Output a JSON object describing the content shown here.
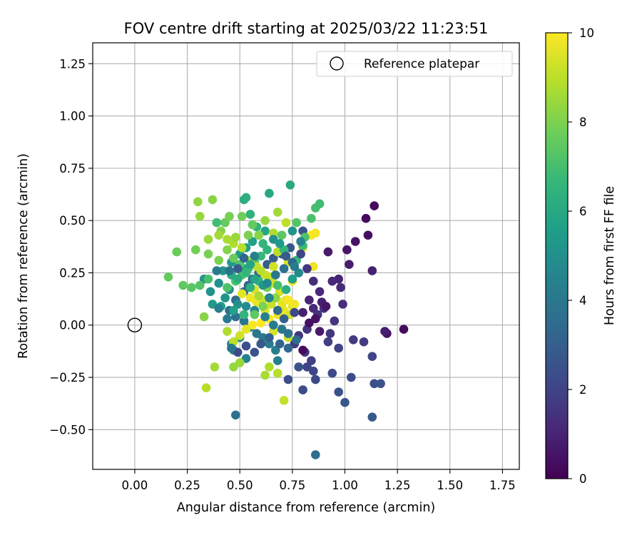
{
  "chart_data": {
    "type": "scatter",
    "title": "FOV centre drift starting at 2025/03/22 11:23:51",
    "xlabel": "Angular distance from reference (arcmin)",
    "ylabel": "Rotation from reference (arcmin)",
    "xlim": [
      -0.2,
      1.83
    ],
    "ylim": [
      -0.69,
      1.35
    ],
    "xticks": [
      "0.00",
      "0.25",
      "0.50",
      "0.75",
      "1.00",
      "1.25",
      "1.50",
      "1.75"
    ],
    "yticks": [
      "−0.50",
      "−0.25",
      "0.00",
      "0.25",
      "0.50",
      "0.75",
      "1.00",
      "1.25"
    ],
    "grid": true,
    "legend": {
      "placement": "top-right",
      "entries": [
        "Reference platepar"
      ]
    },
    "colorbar": {
      "label": "Hours from first FF file",
      "range": [
        0,
        10
      ],
      "ticks": [
        "0",
        "2",
        "4",
        "6",
        "8",
        "10"
      ],
      "colormap": [
        "#440154",
        "#482878",
        "#3e4a89",
        "#31688e",
        "#26828e",
        "#1f9e89",
        "#35b779",
        "#6ece58",
        "#b5de2b",
        "#fde725"
      ]
    },
    "reference_point": {
      "x": 0.0,
      "y": 0.0
    },
    "points": [
      [
        1.14,
        0.57,
        0.2
      ],
      [
        1.1,
        0.51,
        0.3
      ],
      [
        1.11,
        0.43,
        0.4
      ],
      [
        1.05,
        0.4,
        0.5
      ],
      [
        1.01,
        0.36,
        0.6
      ],
      [
        0.92,
        0.35,
        0.7
      ],
      [
        1.02,
        0.29,
        0.8
      ],
      [
        1.13,
        0.26,
        0.9
      ],
      [
        0.97,
        0.22,
        1.0
      ],
      [
        0.94,
        0.21,
        1.1
      ],
      [
        0.98,
        0.18,
        1.2
      ],
      [
        0.99,
        0.1,
        1.3
      ],
      [
        0.9,
        0.08,
        1.4
      ],
      [
        0.95,
        0.02,
        1.5
      ],
      [
        0.93,
        -0.04,
        1.6
      ],
      [
        1.04,
        -0.07,
        1.7
      ],
      [
        1.09,
        -0.08,
        1.8
      ],
      [
        0.92,
        -0.08,
        1.9
      ],
      [
        0.97,
        -0.11,
        2.0
      ],
      [
        1.13,
        -0.15,
        2.1
      ],
      [
        0.94,
        -0.23,
        2.2
      ],
      [
        1.03,
        -0.25,
        2.3
      ],
      [
        1.14,
        -0.28,
        2.4
      ],
      [
        1.17,
        -0.28,
        2.5
      ],
      [
        0.97,
        -0.32,
        2.6
      ],
      [
        1.0,
        -0.37,
        2.7
      ],
      [
        1.13,
        -0.44,
        2.8
      ],
      [
        1.2,
        -0.04,
        0.5
      ],
      [
        1.28,
        -0.02,
        0.3
      ],
      [
        1.19,
        -0.03,
        0.8
      ],
      [
        0.86,
        -0.62,
        3.6
      ],
      [
        0.48,
        -0.43,
        3.7
      ],
      [
        0.83,
        0.12,
        1.0
      ],
      [
        0.85,
        0.08,
        1.2
      ],
      [
        0.8,
        0.06,
        0.9
      ],
      [
        0.87,
        0.05,
        1.4
      ],
      [
        0.82,
        -0.02,
        1.5
      ],
      [
        0.78,
        -0.05,
        1.6
      ],
      [
        0.76,
        -0.09,
        1.7
      ],
      [
        0.81,
        -0.13,
        1.8
      ],
      [
        0.84,
        -0.17,
        1.9
      ],
      [
        0.82,
        -0.2,
        2.0
      ],
      [
        0.85,
        -0.22,
        2.1
      ],
      [
        0.86,
        -0.26,
        2.2
      ],
      [
        0.8,
        -0.31,
        2.3
      ],
      [
        0.73,
        -0.26,
        2.4
      ],
      [
        0.78,
        -0.2,
        2.5
      ],
      [
        0.8,
        0.45,
        2.6
      ],
      [
        0.74,
        0.37,
        2.7
      ],
      [
        0.7,
        0.34,
        2.8
      ],
      [
        0.66,
        0.32,
        2.9
      ],
      [
        0.63,
        0.29,
        3.0
      ],
      [
        0.59,
        0.25,
        3.1
      ],
      [
        0.56,
        0.22,
        3.2
      ],
      [
        0.54,
        0.19,
        3.3
      ],
      [
        0.52,
        0.16,
        3.4
      ],
      [
        0.48,
        0.12,
        3.5
      ],
      [
        0.45,
        0.07,
        3.6
      ],
      [
        0.48,
        0.04,
        3.7
      ],
      [
        0.52,
        0.02,
        3.8
      ],
      [
        0.55,
        -0.01,
        3.9
      ],
      [
        0.58,
        -0.04,
        4.0
      ],
      [
        0.61,
        -0.06,
        4.1
      ],
      [
        0.64,
        -0.09,
        4.2
      ],
      [
        0.67,
        -0.12,
        4.3
      ],
      [
        0.68,
        -0.17,
        4.4
      ],
      [
        0.53,
        -0.16,
        4.5
      ],
      [
        0.47,
        -0.12,
        4.6
      ],
      [
        0.46,
        -0.09,
        4.7
      ],
      [
        0.5,
        -0.06,
        4.8
      ],
      [
        0.45,
        0.17,
        4.9
      ],
      [
        0.4,
        0.2,
        5.0
      ],
      [
        0.36,
        0.16,
        5.1
      ],
      [
        0.33,
        0.22,
        5.2
      ],
      [
        0.42,
        0.26,
        5.3
      ],
      [
        0.46,
        0.3,
        5.4
      ],
      [
        0.5,
        0.34,
        5.5
      ],
      [
        0.53,
        0.37,
        5.6
      ],
      [
        0.56,
        0.4,
        5.7
      ],
      [
        0.59,
        0.43,
        5.8
      ],
      [
        0.62,
        0.45,
        5.9
      ],
      [
        0.64,
        0.63,
        6.0
      ],
      [
        0.74,
        0.67,
        6.1
      ],
      [
        0.52,
        0.6,
        6.2
      ],
      [
        0.53,
        0.61,
        6.3
      ],
      [
        0.55,
        0.53,
        6.4
      ],
      [
        0.58,
        0.47,
        6.5
      ],
      [
        0.61,
        0.39,
        6.6
      ],
      [
        0.6,
        0.33,
        6.7
      ],
      [
        0.57,
        0.3,
        6.8
      ],
      [
        0.54,
        0.27,
        6.9
      ],
      [
        0.51,
        0.24,
        7.0
      ],
      [
        0.48,
        0.21,
        7.1
      ],
      [
        0.44,
        0.18,
        7.2
      ],
      [
        0.31,
        0.19,
        7.3
      ],
      [
        0.27,
        0.18,
        7.4
      ],
      [
        0.23,
        0.19,
        7.5
      ],
      [
        0.16,
        0.23,
        7.6
      ],
      [
        0.2,
        0.35,
        7.7
      ],
      [
        0.29,
        0.36,
        7.8
      ],
      [
        0.35,
        0.34,
        7.9
      ],
      [
        0.4,
        0.31,
        8.0
      ],
      [
        0.41,
        0.45,
        8.1
      ],
      [
        0.37,
        0.6,
        8.2
      ],
      [
        0.3,
        0.59,
        8.3
      ],
      [
        0.31,
        0.52,
        8.4
      ],
      [
        0.35,
        0.41,
        8.5
      ],
      [
        0.4,
        0.43,
        8.6
      ],
      [
        0.44,
        0.41,
        8.7
      ],
      [
        0.47,
        0.39,
        8.8
      ],
      [
        0.51,
        0.37,
        8.9
      ],
      [
        0.55,
        0.31,
        9.0
      ],
      [
        0.58,
        0.28,
        9.1
      ],
      [
        0.62,
        0.24,
        9.2
      ],
      [
        0.66,
        0.2,
        9.3
      ],
      [
        0.69,
        0.16,
        9.4
      ],
      [
        0.72,
        0.12,
        9.5
      ],
      [
        0.75,
        0.09,
        9.6
      ],
      [
        0.71,
        0.07,
        9.7
      ],
      [
        0.68,
        0.05,
        9.8
      ],
      [
        0.64,
        0.03,
        9.9
      ],
      [
        0.6,
        0.01,
        10.0
      ],
      [
        0.56,
        0.0,
        9.9
      ],
      [
        0.53,
        -0.02,
        9.6
      ],
      [
        0.5,
        -0.05,
        9.3
      ],
      [
        0.47,
        -0.08,
        9.0
      ],
      [
        0.44,
        -0.03,
        8.8
      ],
      [
        0.38,
        -0.2,
        8.6
      ],
      [
        0.34,
        -0.3,
        8.9
      ],
      [
        0.33,
        0.04,
        8.2
      ],
      [
        0.47,
        -0.2,
        8.4
      ],
      [
        0.5,
        -0.18,
        8.5
      ],
      [
        0.62,
        -0.24,
        8.7
      ],
      [
        0.64,
        -0.2,
        8.8
      ],
      [
        0.68,
        -0.23,
        8.9
      ],
      [
        0.71,
        -0.36,
        9.1
      ],
      [
        0.73,
        -0.06,
        9.2
      ],
      [
        0.66,
        -0.03,
        9.4
      ],
      [
        0.62,
        0.07,
        9.5
      ],
      [
        0.58,
        0.11,
        9.7
      ],
      [
        0.55,
        0.13,
        9.8
      ],
      [
        0.51,
        0.15,
        9.6
      ],
      [
        0.57,
        0.17,
        9.5
      ],
      [
        0.61,
        0.12,
        9.3
      ],
      [
        0.65,
        0.1,
        9.2
      ],
      [
        0.7,
        0.11,
        9.7
      ],
      [
        0.73,
        0.12,
        9.9
      ],
      [
        0.76,
        0.1,
        9.8
      ],
      [
        0.74,
        0.05,
        9.4
      ],
      [
        0.7,
        0.09,
        9.6
      ],
      [
        0.84,
        0.43,
        10.0
      ],
      [
        0.86,
        0.44,
        9.9
      ],
      [
        0.85,
        0.28,
        9.8
      ],
      [
        0.75,
        0.21,
        9.7
      ],
      [
        0.8,
        0.37,
        9.6
      ],
      [
        0.73,
        0.3,
        9.4
      ],
      [
        0.66,
        0.28,
        9.3
      ],
      [
        0.64,
        0.23,
        9.1
      ],
      [
        0.6,
        0.26,
        9.0
      ],
      [
        0.68,
        0.35,
        8.9
      ],
      [
        0.72,
        0.49,
        9.0
      ],
      [
        0.66,
        0.44,
        8.8
      ],
      [
        0.68,
        0.54,
        8.6
      ],
      [
        0.62,
        0.5,
        8.4
      ],
      [
        0.59,
        0.43,
        8.2
      ],
      [
        0.54,
        0.43,
        8.0
      ],
      [
        0.51,
        0.52,
        7.8
      ],
      [
        0.56,
        0.48,
        7.6
      ],
      [
        0.7,
        0.43,
        7.4
      ],
      [
        0.77,
        0.49,
        7.3
      ],
      [
        0.81,
        0.42,
        7.2
      ],
      [
        0.84,
        0.51,
        7.1
      ],
      [
        0.86,
        0.56,
        7.0
      ],
      [
        0.88,
        0.58,
        6.9
      ],
      [
        0.8,
        0.38,
        6.8
      ],
      [
        0.77,
        0.31,
        6.7
      ],
      [
        0.71,
        0.36,
        6.6
      ],
      [
        0.63,
        0.36,
        6.5
      ],
      [
        0.59,
        0.21,
        6.4
      ],
      [
        0.55,
        0.18,
        6.3
      ],
      [
        0.49,
        0.22,
        6.2
      ],
      [
        0.46,
        0.24,
        6.1
      ],
      [
        0.52,
        0.27,
        6.0
      ],
      [
        0.55,
        0.29,
        5.8
      ],
      [
        0.41,
        0.09,
        5.6
      ],
      [
        0.37,
        0.1,
        5.4
      ],
      [
        0.43,
        0.13,
        5.2
      ],
      [
        0.49,
        0.1,
        5.0
      ],
      [
        0.53,
        0.09,
        4.8
      ],
      [
        0.57,
        0.07,
        4.6
      ],
      [
        0.62,
        0.04,
        4.4
      ],
      [
        0.66,
        0.0,
        4.2
      ],
      [
        0.7,
        -0.02,
        4.0
      ],
      [
        0.73,
        -0.04,
        3.8
      ],
      [
        0.77,
        -0.07,
        3.6
      ],
      [
        0.73,
        -0.11,
        3.4
      ],
      [
        0.69,
        -0.09,
        3.2
      ],
      [
        0.64,
        -0.06,
        3.0
      ],
      [
        0.6,
        -0.09,
        2.8
      ],
      [
        0.57,
        -0.13,
        2.6
      ],
      [
        0.53,
        -0.1,
        2.4
      ],
      [
        0.49,
        -0.13,
        2.3
      ],
      [
        0.46,
        -0.11,
        3.9
      ],
      [
        0.44,
        0.03,
        4.1
      ],
      [
        0.4,
        0.08,
        4.3
      ],
      [
        0.47,
        0.07,
        5.7
      ],
      [
        0.52,
        0.05,
        6.5
      ],
      [
        0.57,
        0.05,
        7.5
      ],
      [
        0.61,
        0.09,
        8.0
      ],
      [
        0.67,
        0.13,
        8.3
      ],
      [
        0.59,
        0.14,
        8.7
      ],
      [
        0.63,
        0.18,
        7.9
      ],
      [
        0.68,
        0.19,
        7.0
      ],
      [
        0.72,
        0.17,
        6.2
      ],
      [
        0.75,
        0.22,
        5.5
      ],
      [
        0.78,
        0.25,
        4.7
      ],
      [
        0.75,
        0.3,
        3.3
      ],
      [
        0.72,
        0.33,
        2.9
      ],
      [
        0.79,
        0.34,
        2.1
      ],
      [
        0.82,
        0.27,
        1.6
      ],
      [
        0.85,
        0.21,
        1.3
      ],
      [
        0.88,
        0.16,
        1.1
      ],
      [
        0.89,
        0.11,
        0.9
      ],
      [
        0.91,
        0.09,
        0.6
      ],
      [
        0.86,
        0.03,
        0.5
      ],
      [
        0.83,
        0.01,
        0.4
      ],
      [
        0.88,
        -0.03,
        0.7
      ],
      [
        0.8,
        -0.12,
        0.3
      ],
      [
        0.76,
        0.06,
        2.2
      ],
      [
        0.71,
        0.03,
        3.1
      ],
      [
        0.68,
        0.07,
        3.5
      ],
      [
        0.64,
        0.13,
        4.6
      ],
      [
        0.61,
        0.19,
        5.3
      ],
      [
        0.57,
        0.22,
        5.9
      ],
      [
        0.53,
        0.25,
        6.6
      ],
      [
        0.5,
        0.29,
        7.2
      ],
      [
        0.47,
        0.32,
        7.7
      ],
      [
        0.44,
        0.36,
        8.1
      ],
      [
        0.48,
        0.42,
        8.5
      ],
      [
        0.43,
        0.49,
        7.6
      ],
      [
        0.39,
        0.49,
        6.9
      ],
      [
        0.45,
        0.52,
        7.9
      ],
      [
        0.66,
        0.41,
        5.0
      ],
      [
        0.69,
        0.39,
        5.4
      ],
      [
        0.75,
        0.45,
        5.2
      ],
      [
        0.79,
        0.4,
        4.5
      ],
      [
        0.76,
        0.28,
        4.1
      ],
      [
        0.71,
        0.27,
        3.7
      ],
      [
        0.67,
        0.24,
        4.0
      ],
      [
        0.63,
        0.2,
        4.7
      ],
      [
        0.57,
        0.33,
        4.4
      ],
      [
        0.52,
        0.32,
        3.3
      ],
      [
        0.49,
        0.27,
        2.9
      ],
      [
        0.45,
        0.26,
        3.8
      ],
      [
        0.39,
        0.26,
        4.2
      ],
      [
        0.35,
        0.22,
        7.1
      ]
    ]
  }
}
